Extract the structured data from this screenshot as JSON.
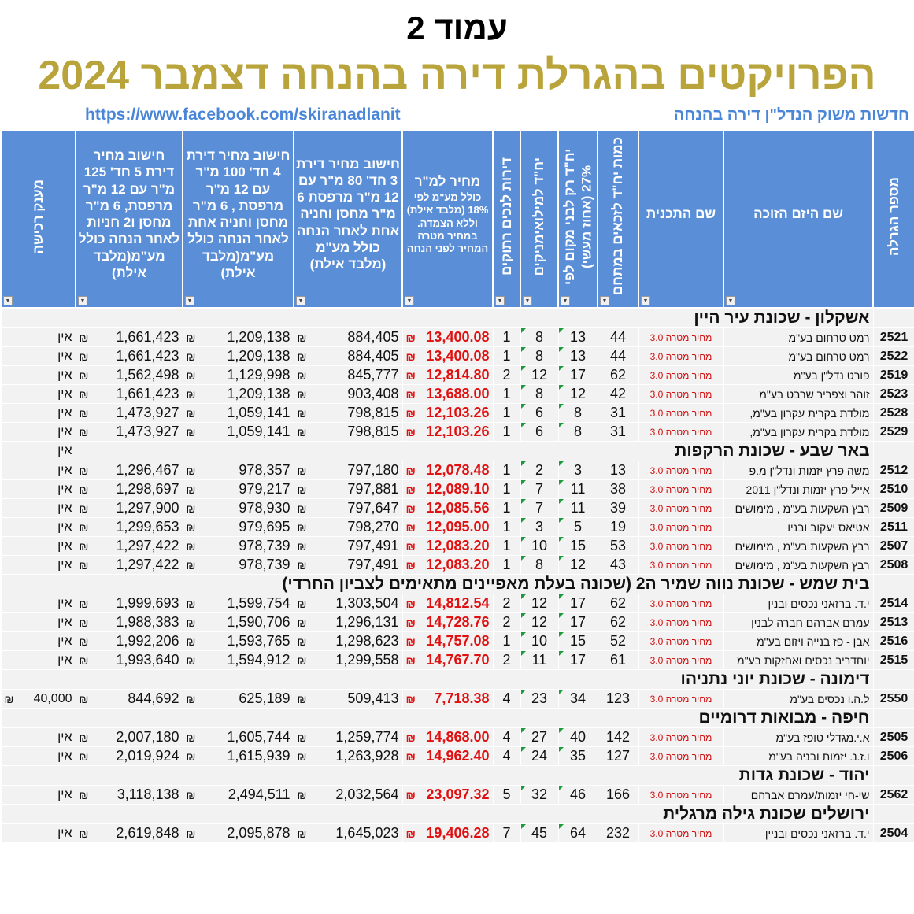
{
  "page_label": "עמוד 2",
  "title": "הפרויקטים בהגרלת דירה בהנחה דצמבר 2024",
  "facebook_link": "https://www.facebook.com/skiranadlanit",
  "source_text": "חדשות משוק הנדל\"ן דירה בהנחה",
  "colors": {
    "header_bg": "#5a8fd8",
    "title_gold": "#b8a43a",
    "price_red": "#e01010",
    "link_blue": "#4a86d8"
  },
  "currency_symbol": "₪",
  "columns": [
    {
      "label": "מספר הגרלה",
      "vertical": true
    },
    {
      "label": "שם היזם הזוכה"
    },
    {
      "label": "שם התכנית"
    },
    {
      "label": "כמות יח\"ד לזכאים במתחם",
      "vertical": true
    },
    {
      "label": "יח\"ד רק לבני מקום לפי 27% (אחוז מעשי)",
      "vertical": true
    },
    {
      "label": "יח\"ד למילואימניקים",
      "vertical": true
    },
    {
      "label": "דירות לנכים רתוקים",
      "vertical": true
    },
    {
      "label": "מחיר למ\"ר",
      "sub": "כולל מע\"מ לפי 18% (מלבד אילת) וללא הצמדה. במחיר מטרה המחיר לפני הנחה"
    },
    {
      "label": "חישוב מחיר דירת 3 חד' 80 מ\"ר עם 12 מ\"ר מרפסת 6 מ\"ר מחסן וחניה אחת לאחר הנחה כולל מע\"מ (מלבד אילת)"
    },
    {
      "label": "חישוב מחיר דירת 4 חד' 100 מ\"ר עם 12 מ\"ר מרפסת , 6 מ\"ר מחסן וחניה אחת לאחר הנחה כולל מע\"מ(מלבד אילת)"
    },
    {
      "label": "חישוב מחיר דירת 5 חד' 125 מ\"ר עם 12 מ\"ר מרפסת, 6 מ\"ר מחסן ו2 חניות לאחר הנחה כולל מע\"מ(מלבד אילת)"
    },
    {
      "label": "מענק רכישה",
      "vertical": true
    }
  ],
  "sections": [
    {
      "title": "אשקלון - שכונת עיר היין",
      "grant": "",
      "rows": [
        [
          "2521",
          "רמט טרחום בע\"מ",
          "מחיר מטרה 3.0",
          "44",
          "13",
          "8",
          "1",
          "13,400.08",
          "884,405",
          "1,209,138",
          "1,661,423",
          "אין"
        ],
        [
          "2522",
          "רמט טרחום בע\"מ",
          "מחיר מטרה 3.0",
          "44",
          "13",
          "8",
          "1",
          "13,400.08",
          "884,405",
          "1,209,138",
          "1,661,423",
          "אין"
        ],
        [
          "2519",
          "פורט נדל\"ן בע\"מ",
          "מחיר מטרה 3.0",
          "62",
          "17",
          "12",
          "2",
          "12,814.80",
          "845,777",
          "1,129,998",
          "1,562,498",
          "אין"
        ],
        [
          "2523",
          "זוהר וצפריר שרבט בע\"מ",
          "מחיר מטרה 3.0",
          "42",
          "12",
          "8",
          "1",
          "13,688.00",
          "903,408",
          "1,209,138",
          "1,661,423",
          "אין"
        ],
        [
          "2528",
          "מולדת בקרית עקרון בע\"מ,",
          "מחיר מטרה 3.0",
          "31",
          "8",
          "6",
          "1",
          "12,103.26",
          "798,815",
          "1,059,141",
          "1,473,927",
          "אין"
        ],
        [
          "2529",
          "מולדת בקרית עקרון בע\"מ,",
          "מחיר מטרה 3.0",
          "31",
          "8",
          "6",
          "1",
          "12,103.26",
          "798,815",
          "1,059,141",
          "1,473,927",
          "אין"
        ]
      ]
    },
    {
      "title": "באר שבע - שכונת הרקפות",
      "grant": "אין",
      "rows": [
        [
          "2512",
          "משה פרץ יזמות ונדל\"ן מ.פ",
          "מחיר מטרה 3.0",
          "13",
          "3",
          "2",
          "1",
          "12,078.48",
          "797,180",
          "978,357",
          "1,296,467",
          "אין"
        ],
        [
          "2510",
          "אייל פרץ יזמות ונדל\"ן 2011",
          "מחיר מטרה 3.0",
          "38",
          "11",
          "7",
          "1",
          "12,089.10",
          "797,881",
          "979,217",
          "1,298,697",
          "אין"
        ],
        [
          "2509",
          "רבץ השקעות בע\"מ , מימושים",
          "מחיר מטרה 3.0",
          "39",
          "11",
          "7",
          "1",
          "12,085.56",
          "797,647",
          "978,930",
          "1,297,900",
          "אין"
        ],
        [
          "2511",
          "אטיאס יעקוב ובניו",
          "מחיר מטרה 3.0",
          "19",
          "5",
          "3",
          "1",
          "12,095.00",
          "798,270",
          "979,695",
          "1,299,653",
          "אין"
        ],
        [
          "2507",
          "רבץ השקעות בע\"מ , מימושים",
          "מחיר מטרה 3.0",
          "53",
          "15",
          "10",
          "1",
          "12,083.20",
          "797,491",
          "978,739",
          "1,297,422",
          "אין"
        ],
        [
          "2508",
          "רבץ השקעות בע\"מ , מימושים",
          "מחיר מטרה 3.0",
          "43",
          "12",
          "8",
          "1",
          "12,083.20",
          "797,491",
          "978,739",
          "1,297,422",
          "אין"
        ]
      ]
    },
    {
      "title": "בית שמש - שכונת נווה שמיר ה2 (שכונה בעלת מאפיינים מתאימים לצביון החרדי)",
      "grant": "",
      "rows": [
        [
          "2514",
          "י.ד. ברזאני נכסים ובנין",
          "מחיר מטרה 3.0",
          "62",
          "17",
          "12",
          "2",
          "14,812.54",
          "1,303,504",
          "1,599,754",
          "1,999,693",
          "אין"
        ],
        [
          "2513",
          "עמרם אברהם חברה לבנין",
          "מחיר מטרה 3.0",
          "62",
          "17",
          "12",
          "2",
          "14,728.76",
          "1,296,131",
          "1,590,706",
          "1,988,383",
          "אין"
        ],
        [
          "2516",
          "אבן - פז בנייה ויזום בע\"מ",
          "מחיר מטרה 3.0",
          "52",
          "15",
          "10",
          "1",
          "14,757.08",
          "1,298,623",
          "1,593,765",
          "1,992,206",
          "אין"
        ],
        [
          "2515",
          "יוחדריב נכסים ואחזקות בע\"מ",
          "מחיר מטרה 3.0",
          "61",
          "17",
          "11",
          "2",
          "14,767.70",
          "1,299,558",
          "1,594,912",
          "1,993,640",
          "אין"
        ]
      ]
    },
    {
      "title": "דימונה - שכונת יוני נתניהו",
      "grant": "",
      "rows": [
        [
          "2550",
          "ל.ה.ו נכסים בע\"מ",
          "מחיר מטרה 3.0",
          "123",
          "34",
          "23",
          "4",
          "7,718.38",
          "509,413",
          "625,189",
          "844,692",
          "40,000"
        ]
      ]
    },
    {
      "title": "חיפה - מבואות דרומיים",
      "grant": "",
      "rows": [
        [
          "2505",
          "א.י.מגדלי טופז בע\"מ",
          "מחיר מטרה 3.0",
          "142",
          "40",
          "27",
          "4",
          "14,868.00",
          "1,259,774",
          "1,605,744",
          "2,007,180",
          "אין"
        ],
        [
          "2506",
          "ו.ז.נ. יזמות ובניה בע\"מ",
          "מחיר מטרה 3.0",
          "127",
          "35",
          "24",
          "4",
          "14,962.40",
          "1,263,928",
          "1,615,939",
          "2,019,924",
          "אין"
        ]
      ]
    },
    {
      "title": "יהוד - שכונת גדות",
      "grant": "",
      "rows": [
        [
          "2562",
          "שי-חי יזמות/עמרם אברהם",
          "מחיר מטרה 3.0",
          "166",
          "46",
          "32",
          "5",
          "23,097.32",
          "2,032,564",
          "2,494,511",
          "3,118,138",
          "אין"
        ]
      ]
    },
    {
      "title": "ירושלים שכונת גילה מרגלית",
      "grant": "",
      "rows": [
        [
          "2504",
          "י.ד. ברזאני נכסים ובניין",
          "מחיר מטרה 3.0",
          "232",
          "64",
          "45",
          "7",
          "19,406.28",
          "1,645,023",
          "2,095,878",
          "2,619,848",
          "אין"
        ]
      ]
    }
  ]
}
